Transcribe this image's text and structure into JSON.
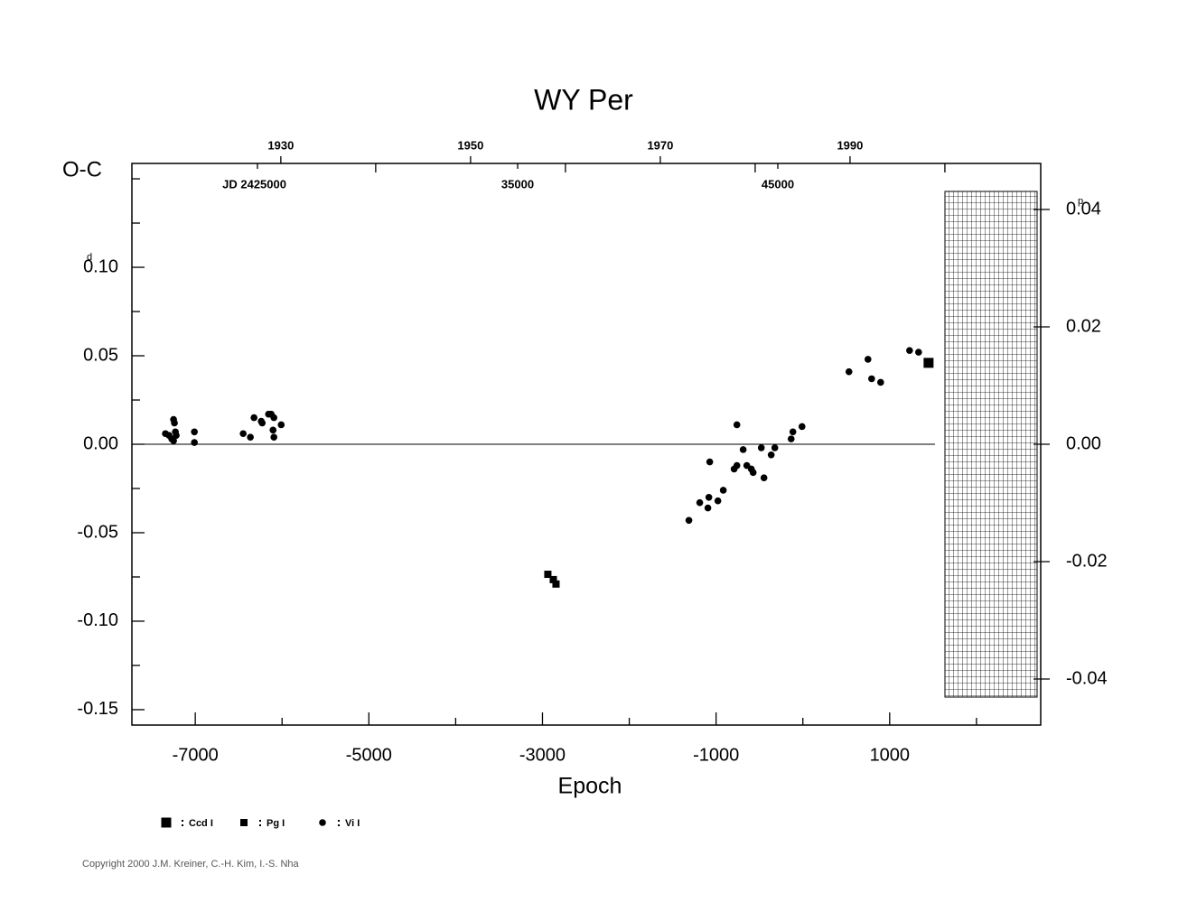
{
  "chart_data": {
    "type": "scatter",
    "title": "WY Per",
    "y_label": "O-C",
    "x_label": "Epoch",
    "y_unit": "d",
    "y2_unit": "p",
    "xlim": [
      -7730,
      2740
    ],
    "xticks": [
      -7000,
      -5000,
      -3000,
      -1000,
      1000
    ],
    "xticks_minor": [
      -6000,
      -4000,
      -2000,
      0,
      2000
    ],
    "ylim": [
      -0.1587,
      0.1587
    ],
    "yticks": [
      -0.15,
      {
        "value": -0.1,
        "label": "-0.10"
      },
      -0.05,
      {
        "value": 0,
        "label": "0.00"
      },
      0.05,
      {
        "value": 0.1,
        "label": "0.10"
      }
    ],
    "yticks_minor": [
      -0.125,
      -0.075,
      -0.025,
      0.025,
      0.075,
      0.125,
      0.15
    ],
    "y2lim": [
      -0.04785,
      0.04785
    ],
    "y2ticks": [
      -0.04,
      -0.02,
      {
        "value": 0,
        "label": "0.00"
      },
      0.02,
      0.04
    ],
    "x2lim": [
      1914.3,
      2010.1
    ],
    "x2ticks": [
      1930,
      1950,
      1970,
      1990
    ],
    "x2ticks_minor": [
      1940,
      1960,
      1980,
      2000
    ],
    "jdlim": [
      2420174,
      2455104
    ],
    "jdticks": [
      {
        "value": 2425000,
        "label": "JD 2425000"
      },
      {
        "value": 2435000,
        "label": "35000"
      },
      {
        "value": 2445000,
        "label": "45000"
      }
    ],
    "zero_line": true,
    "series": [
      {
        "name": "Ccd I",
        "marker": "square-large",
        "color": "#000000",
        "x": [
          1448
        ],
        "values": [
          0.046
        ]
      },
      {
        "name": "Pg I",
        "marker": "square-small",
        "color": "#000000",
        "x": [
          -2938,
          -2875,
          -2844
        ],
        "values": [
          -0.0735,
          -0.0765,
          -0.079
        ]
      },
      {
        "name": "Vi I",
        "marker": "circle",
        "color": "#000000",
        "x": [
          -7344,
          -7302,
          -7271,
          -7250,
          -7250,
          -7240,
          -7229,
          -7219,
          -7010,
          -7010,
          -6448,
          -6365,
          -6323,
          -6240,
          -6229,
          -6156,
          -6125,
          -6094,
          -6104,
          -6094,
          -6010,
          -1313,
          -1188,
          -1094,
          -1073,
          -1083,
          -979,
          -917,
          -792,
          -760,
          -760,
          -688,
          -646,
          -594,
          -573,
          -479,
          -448,
          -365,
          -323,
          -135,
          -115,
          -10,
          531,
          750,
          792,
          896,
          1229,
          1333
        ],
        "values": [
          0.006,
          0.005,
          0.003,
          0.002,
          0.014,
          0.012,
          0.007,
          0.005,
          0.007,
          0.001,
          0.006,
          0.004,
          0.015,
          0.013,
          0.012,
          0.017,
          0.017,
          0.015,
          0.008,
          0.004,
          0.011,
          -0.043,
          -0.033,
          -0.036,
          -0.01,
          -0.03,
          -0.032,
          -0.026,
          -0.014,
          0.011,
          -0.012,
          -0.003,
          -0.012,
          -0.014,
          -0.016,
          -0.002,
          -0.019,
          -0.006,
          -0.002,
          0.003,
          0.007,
          0.01,
          0.041,
          0.048,
          0.037,
          0.035,
          0.053,
          0.052
        ]
      }
    ],
    "copyright": "Copyright 2000 J.M. Kreiner, C.-H. Kim, I.-S. Nha"
  }
}
